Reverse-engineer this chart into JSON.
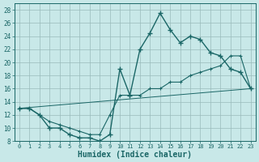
{
  "xlabel": "Humidex (Indice chaleur)",
  "bg_color": "#c8e8e8",
  "grid_color": "#99bbbb",
  "line_color": "#1a6666",
  "xlim_min": -0.5,
  "xlim_max": 23.5,
  "ylim_min": 8,
  "ylim_max": 29,
  "xticks": [
    0,
    1,
    2,
    3,
    4,
    5,
    6,
    7,
    8,
    9,
    10,
    11,
    12,
    13,
    14,
    15,
    16,
    17,
    18,
    19,
    20,
    21,
    22,
    23
  ],
  "yticks": [
    8,
    10,
    12,
    14,
    16,
    18,
    20,
    22,
    24,
    26,
    28
  ],
  "curve1_x": [
    0,
    1,
    2,
    3,
    4,
    5,
    6,
    7,
    8,
    9,
    10,
    11,
    12,
    13,
    14,
    15,
    16,
    17,
    18,
    19,
    20,
    21,
    22,
    23
  ],
  "curve1_y": [
    13,
    13,
    12,
    10,
    10,
    9,
    8.5,
    8.5,
    8,
    9,
    19,
    15,
    22,
    24.5,
    27.5,
    25,
    23,
    24,
    23.5,
    21.5,
    21,
    19,
    18.5,
    16
  ],
  "curve2_x": [
    0,
    1,
    2,
    3,
    4,
    5,
    6,
    7,
    8,
    9,
    10,
    11,
    12,
    13,
    14,
    15,
    16,
    17,
    18,
    19,
    20,
    21,
    22,
    23
  ],
  "curve2_y": [
    13,
    13,
    12,
    11,
    10.5,
    10,
    9.5,
    9,
    9,
    12,
    15,
    15,
    15,
    16,
    16,
    17,
    17,
    18,
    18.5,
    19,
    19.5,
    21,
    21,
    16
  ],
  "curve3_x": [
    0,
    23
  ],
  "curve3_y": [
    13,
    16
  ]
}
